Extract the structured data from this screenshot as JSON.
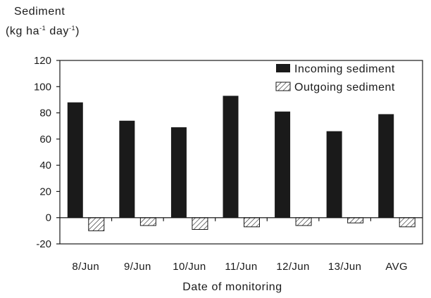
{
  "chart_data": {
    "type": "bar",
    "ylabel_line1": "Sediment",
    "ylabel_prefix": "(kg ha",
    "ylabel_exp1": "-1",
    "ylabel_mid": " day",
    "ylabel_exp2": "-1",
    "ylabel_suffix": ")",
    "xlabel": "Date of monitoring",
    "categories": [
      "8/Jun",
      "9/Jun",
      "10/Jun",
      "11/Jun",
      "12/Jun",
      "13/Jun",
      "AVG"
    ],
    "ylim": [
      -20,
      120
    ],
    "yticks": [
      -20,
      0,
      20,
      40,
      60,
      80,
      100,
      120
    ],
    "grid": false,
    "legend_position": "top-right",
    "series": [
      {
        "name": "Incoming sediment",
        "style": "solid",
        "color": "#1a1a1a",
        "values": [
          88,
          74,
          69,
          93,
          81,
          66,
          79
        ]
      },
      {
        "name": "Outgoing sediment",
        "style": "hatched",
        "color": "#1a1a1a",
        "values": [
          -10,
          -6,
          -9,
          -7,
          -6,
          -4,
          -7
        ]
      }
    ]
  }
}
